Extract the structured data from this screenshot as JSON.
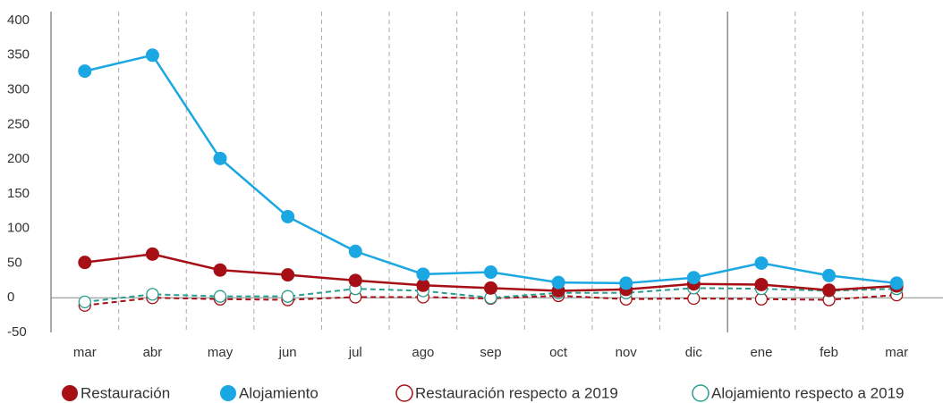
{
  "chart_data": {
    "type": "line",
    "categories": [
      "mar",
      "abr",
      "may",
      "jun",
      "jul",
      "ago",
      "sep",
      "oct",
      "nov",
      "dic",
      "ene",
      "feb",
      "mar"
    ],
    "series": [
      {
        "name": "Restauración",
        "color": "#a50f15",
        "marker": "filled",
        "dashed": false,
        "values": [
          51,
          63,
          40,
          33,
          25,
          18,
          14,
          10,
          12,
          20,
          19,
          11,
          17
        ]
      },
      {
        "name": "Alojamiento",
        "color": "#1ba7e1",
        "marker": "filled",
        "dashed": false,
        "values": [
          327,
          350,
          201,
          117,
          67,
          34,
          37,
          22,
          21,
          29,
          50,
          32,
          21
        ]
      },
      {
        "name": "Restauración respecto a 2019",
        "color": "#a50f15",
        "marker": "hollow",
        "dashed": true,
        "values": [
          -11,
          0,
          -2,
          -3,
          1,
          1,
          -1,
          3,
          -2,
          -1,
          -2,
          -3,
          4
        ]
      },
      {
        "name": "Alojamiento respecto a 2019",
        "color": "#2a9d8f",
        "marker": "hollow",
        "dashed": true,
        "values": [
          -6,
          5,
          2,
          2,
          13,
          10,
          0,
          7,
          7,
          14,
          13,
          10,
          13
        ]
      }
    ],
    "ylim": [
      -50,
      400
    ],
    "yticks": [
      -50,
      0,
      50,
      100,
      150,
      200,
      250,
      300,
      350,
      400
    ],
    "grid": false
  }
}
